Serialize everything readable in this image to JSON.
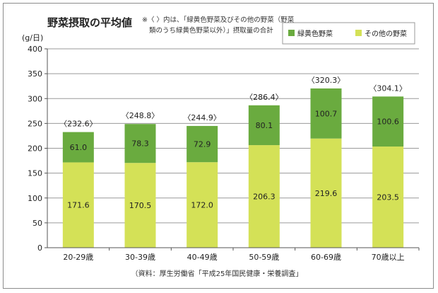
{
  "chart_data": {
    "type": "bar",
    "stacked": true,
    "title": "野菜摂取の平均値",
    "note_lines": [
      "※〈 〉内は、「緑黄色野菜及びその他の野菜（野菜",
      "類のうち緑黄色野菜以外）」摂取量の合計"
    ],
    "ylabel": "(g/日)",
    "ylim": [
      0,
      400
    ],
    "yticks": [
      "0",
      "50",
      "100",
      "150",
      "200",
      "250",
      "300",
      "350",
      "400"
    ],
    "ytick_values": [
      0,
      50,
      100,
      150,
      200,
      250,
      300,
      350,
      400
    ],
    "categories": [
      "20-29歳",
      "30-39歳",
      "40-49歳",
      "50-59歳",
      "60-69歳",
      "70歳以上"
    ],
    "series": [
      {
        "name": "その他の野菜",
        "color": "#d4e157",
        "values": [
          171.6,
          170.5,
          172.0,
          206.3,
          219.6,
          203.5
        ],
        "labels": [
          "171.6",
          "170.5",
          "172.0",
          "206.3",
          "219.6",
          "203.5"
        ]
      },
      {
        "name": "緑黄色野菜",
        "color": "#6aab3f",
        "values": [
          61.0,
          78.3,
          72.9,
          80.1,
          100.7,
          100.6
        ],
        "labels": [
          "61.0",
          "78.3",
          "72.9",
          "80.1",
          "100.7",
          "100.6"
        ]
      }
    ],
    "totals": [
      232.6,
      248.8,
      244.9,
      286.4,
      320.3,
      304.1
    ],
    "total_labels": [
      "〈232.6〉",
      "〈248.8〉",
      "〈244.9〉",
      "〈286.4〉",
      "〈320.3〉",
      "〈304.1〉"
    ],
    "legend": [
      {
        "label": "緑黄色野菜",
        "color": "#6aab3f"
      },
      {
        "label": "その他の野菜",
        "color": "#d4e157"
      }
    ],
    "legend_position": "top-right",
    "grid": true
  },
  "source": "（資料：厚生労働省「平成25年国民健康・栄養調査」"
}
